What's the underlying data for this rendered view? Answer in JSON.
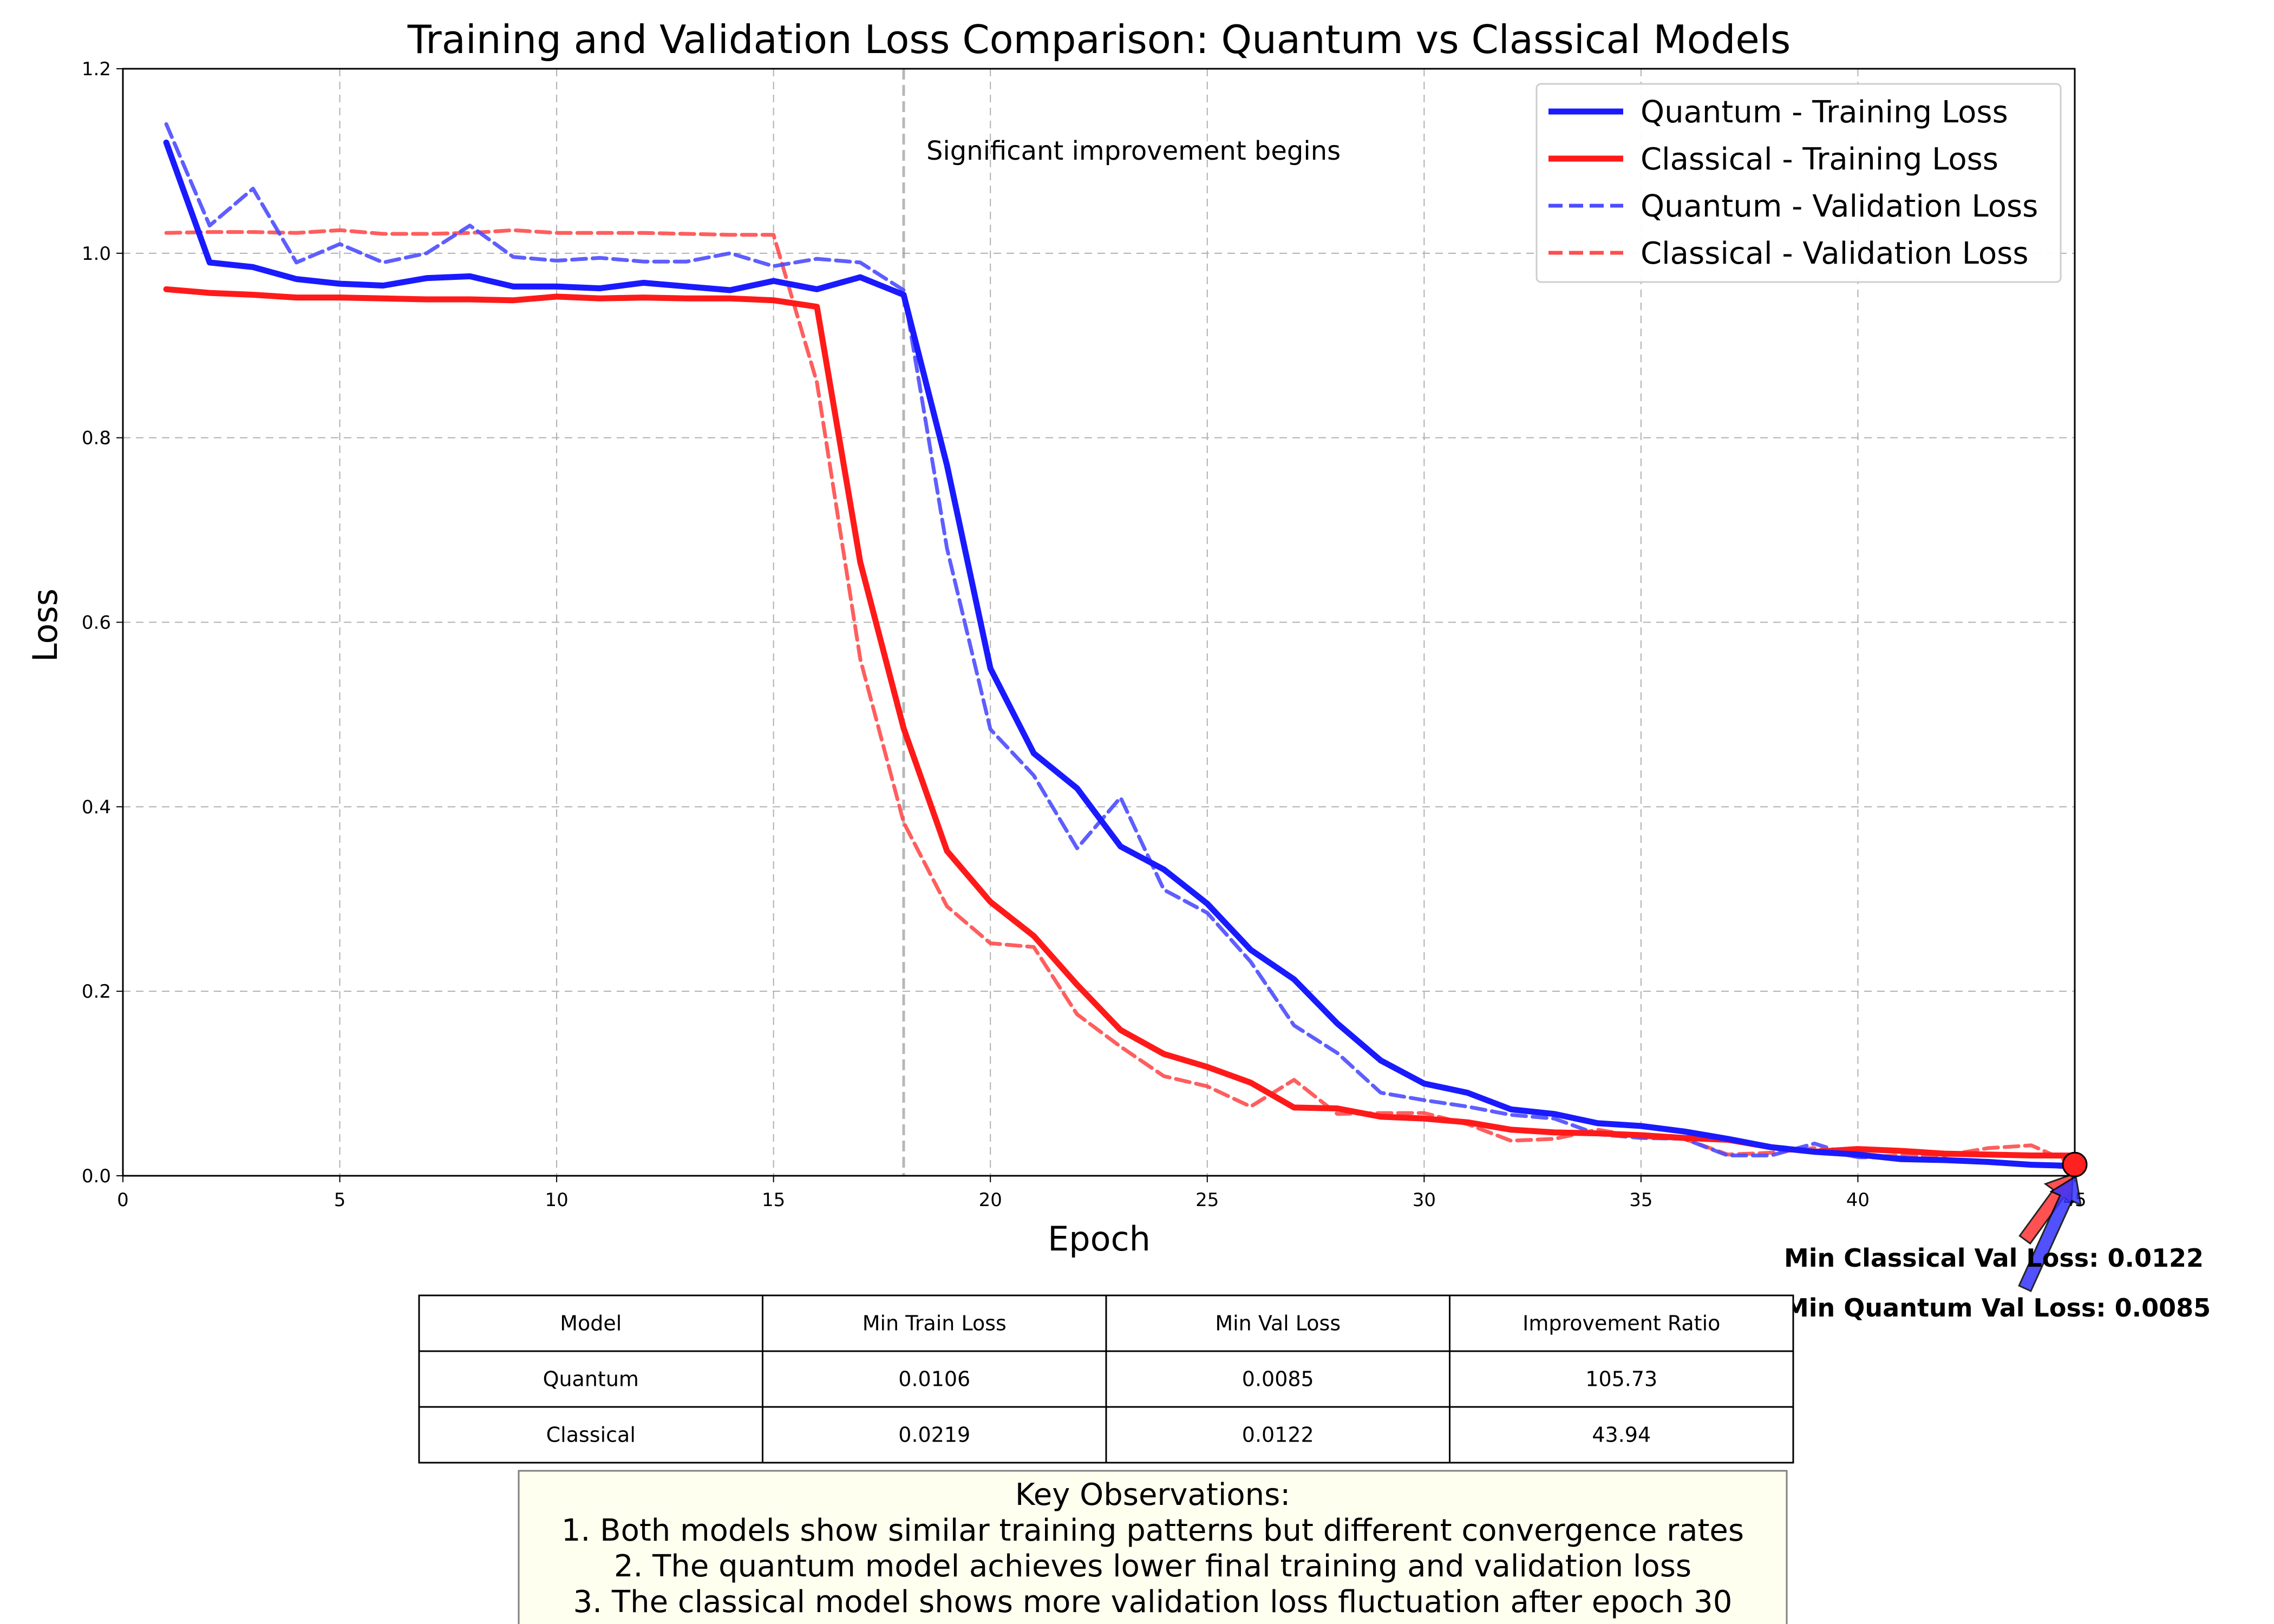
{
  "chart_data": {
    "type": "line",
    "title": "Training and Validation Loss Comparison: Quantum vs Classical Models",
    "xlabel": "Epoch",
    "ylabel": "Loss",
    "xlim": [
      0,
      45
    ],
    "ylim": [
      0,
      1.2
    ],
    "x_ticks": [
      "0",
      "5",
      "10",
      "15",
      "20",
      "25",
      "30",
      "35",
      "40",
      "45"
    ],
    "y_ticks": [
      "0.0",
      "0.2",
      "0.4",
      "0.6",
      "0.8",
      "1.0",
      "1.2"
    ],
    "grid": true,
    "legend_position": "top-right",
    "x": [
      1,
      2,
      3,
      4,
      5,
      6,
      7,
      8,
      9,
      10,
      11,
      12,
      13,
      14,
      15,
      16,
      17,
      18,
      19,
      20,
      21,
      22,
      23,
      24,
      25,
      26,
      27,
      28,
      29,
      30,
      31,
      32,
      33,
      34,
      35,
      36,
      37,
      38,
      39,
      40,
      41,
      42,
      43,
      44,
      45
    ],
    "series": [
      {
        "name": "Quantum - Training Loss",
        "color": "#1a1aff",
        "style": "solid",
        "values": [
          1.12,
          0.99,
          0.985,
          0.972,
          0.967,
          0.965,
          0.973,
          0.975,
          0.964,
          0.964,
          0.962,
          0.968,
          0.964,
          0.96,
          0.97,
          0.961,
          0.974,
          0.955,
          0.77,
          0.55,
          0.458,
          0.42,
          0.357,
          0.332,
          0.295,
          0.245,
          0.213,
          0.165,
          0.125,
          0.1,
          0.09,
          0.072,
          0.067,
          0.057,
          0.054,
          0.048,
          0.04,
          0.031,
          0.026,
          0.023,
          0.018,
          0.017,
          0.015,
          0.012,
          0.0106
        ]
      },
      {
        "name": "Classical - Training Loss",
        "color": "#ff1a1a",
        "style": "solid",
        "values": [
          0.961,
          0.957,
          0.955,
          0.952,
          0.952,
          0.951,
          0.95,
          0.95,
          0.949,
          0.953,
          0.951,
          0.952,
          0.951,
          0.951,
          0.949,
          0.942,
          0.665,
          0.485,
          0.352,
          0.297,
          0.26,
          0.207,
          0.158,
          0.132,
          0.118,
          0.101,
          0.074,
          0.073,
          0.064,
          0.062,
          0.058,
          0.05,
          0.047,
          0.046,
          0.044,
          0.041,
          0.039,
          0.031,
          0.026,
          0.029,
          0.027,
          0.024,
          0.023,
          0.022,
          0.0219
        ]
      },
      {
        "name": "Quantum - Validation Loss",
        "color": "#4d4dff",
        "style": "dashed",
        "values": [
          1.14,
          1.03,
          1.07,
          0.99,
          1.01,
          0.99,
          1.0,
          1.03,
          0.996,
          0.992,
          0.995,
          0.991,
          0.991,
          1.0,
          0.986,
          0.994,
          0.99,
          0.96,
          0.68,
          0.484,
          0.434,
          0.355,
          0.41,
          0.31,
          0.285,
          0.232,
          0.163,
          0.133,
          0.09,
          0.082,
          0.075,
          0.066,
          0.062,
          0.045,
          0.041,
          0.04,
          0.022,
          0.022,
          0.035,
          0.02,
          0.02,
          0.016,
          0.014,
          0.012,
          0.0085
        ]
      },
      {
        "name": "Classical - Validation Loss",
        "color": "#ff4d4d",
        "style": "dashed",
        "values": [
          1.022,
          1.023,
          1.023,
          1.022,
          1.025,
          1.021,
          1.021,
          1.022,
          1.025,
          1.022,
          1.022,
          1.022,
          1.021,
          1.02,
          1.02,
          0.86,
          0.56,
          0.383,
          0.292,
          0.252,
          0.248,
          0.175,
          0.14,
          0.108,
          0.097,
          0.075,
          0.104,
          0.067,
          0.068,
          0.068,
          0.056,
          0.038,
          0.04,
          0.05,
          0.042,
          0.04,
          0.023,
          0.025,
          0.03,
          0.02,
          0.022,
          0.022,
          0.03,
          0.033,
          0.0122
        ]
      }
    ],
    "vline": {
      "x": 18,
      "label": "Significant improvement begins"
    },
    "callouts": [
      {
        "text": "Min Classical Val Loss: 0.0122",
        "x": 45,
        "y": 0.0122,
        "color": "#ff3333"
      },
      {
        "text": "Min Quantum Val Loss: 0.0085",
        "x": 45,
        "y": 0.0085,
        "color": "#3333ff"
      }
    ],
    "table": {
      "headers": [
        "Model",
        "Min Train Loss",
        "Min Val Loss",
        "Improvement Ratio"
      ],
      "rows": [
        [
          "Quantum",
          "0.0106",
          "0.0085",
          "105.73"
        ],
        [
          "Classical",
          "0.0219",
          "0.0122",
          "43.94"
        ]
      ]
    },
    "observations": [
      "Key Observations:",
      "1. Both models show similar training patterns but different convergence rates",
      "2. The quantum model achieves lower final training and validation loss",
      "3. The classical model shows more validation loss fluctuation after epoch 30"
    ]
  }
}
